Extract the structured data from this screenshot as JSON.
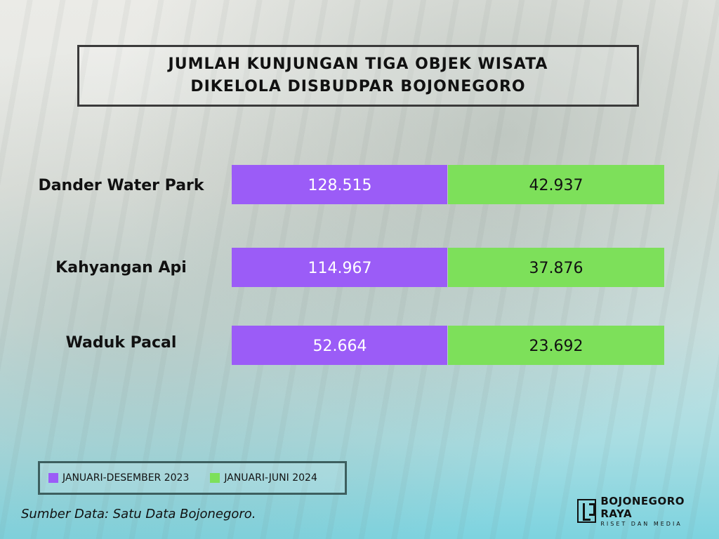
{
  "title": {
    "line1": "JUMLAH KUNJUNGAN TIGA OBJEK WISATA",
    "line2": "DIKELOLA DISBUDPAR BOJONEGORO"
  },
  "legend": {
    "series1": "JANUARI-DESEMBER 2023",
    "series2": "JANUARI-JUNI 2024"
  },
  "source": "Sumber Data: Satu Data Bojonegoro.",
  "brand": {
    "name": "BOJONEGORO RAYA",
    "tagline": "RISET DAN MEDIA"
  },
  "colors": {
    "series1": "#9b5cf7",
    "series2": "#7de05a"
  },
  "chart_data": {
    "type": "bar",
    "orientation": "horizontal",
    "stacked": true,
    "categories": [
      "Dander Water Park",
      "Kahyangan Api",
      "Waduk Pacal"
    ],
    "series": [
      {
        "name": "JANUARI-DESEMBER 2023",
        "values": [
          128515,
          114967,
          52664
        ],
        "labels": [
          "128.515",
          "114.967",
          "52.664"
        ]
      },
      {
        "name": "JANUARI-JUNI 2024",
        "values": [
          42937,
          37876,
          23692
        ],
        "labels": [
          "42.937",
          "37.876",
          "23.692"
        ]
      }
    ],
    "title": "JUMLAH KUNJUNGAN TIGA OBJEK WISATA DIKELOLA DISBUDPAR BOJONEGORO",
    "grid": false,
    "legend_position": "bottom-left"
  }
}
